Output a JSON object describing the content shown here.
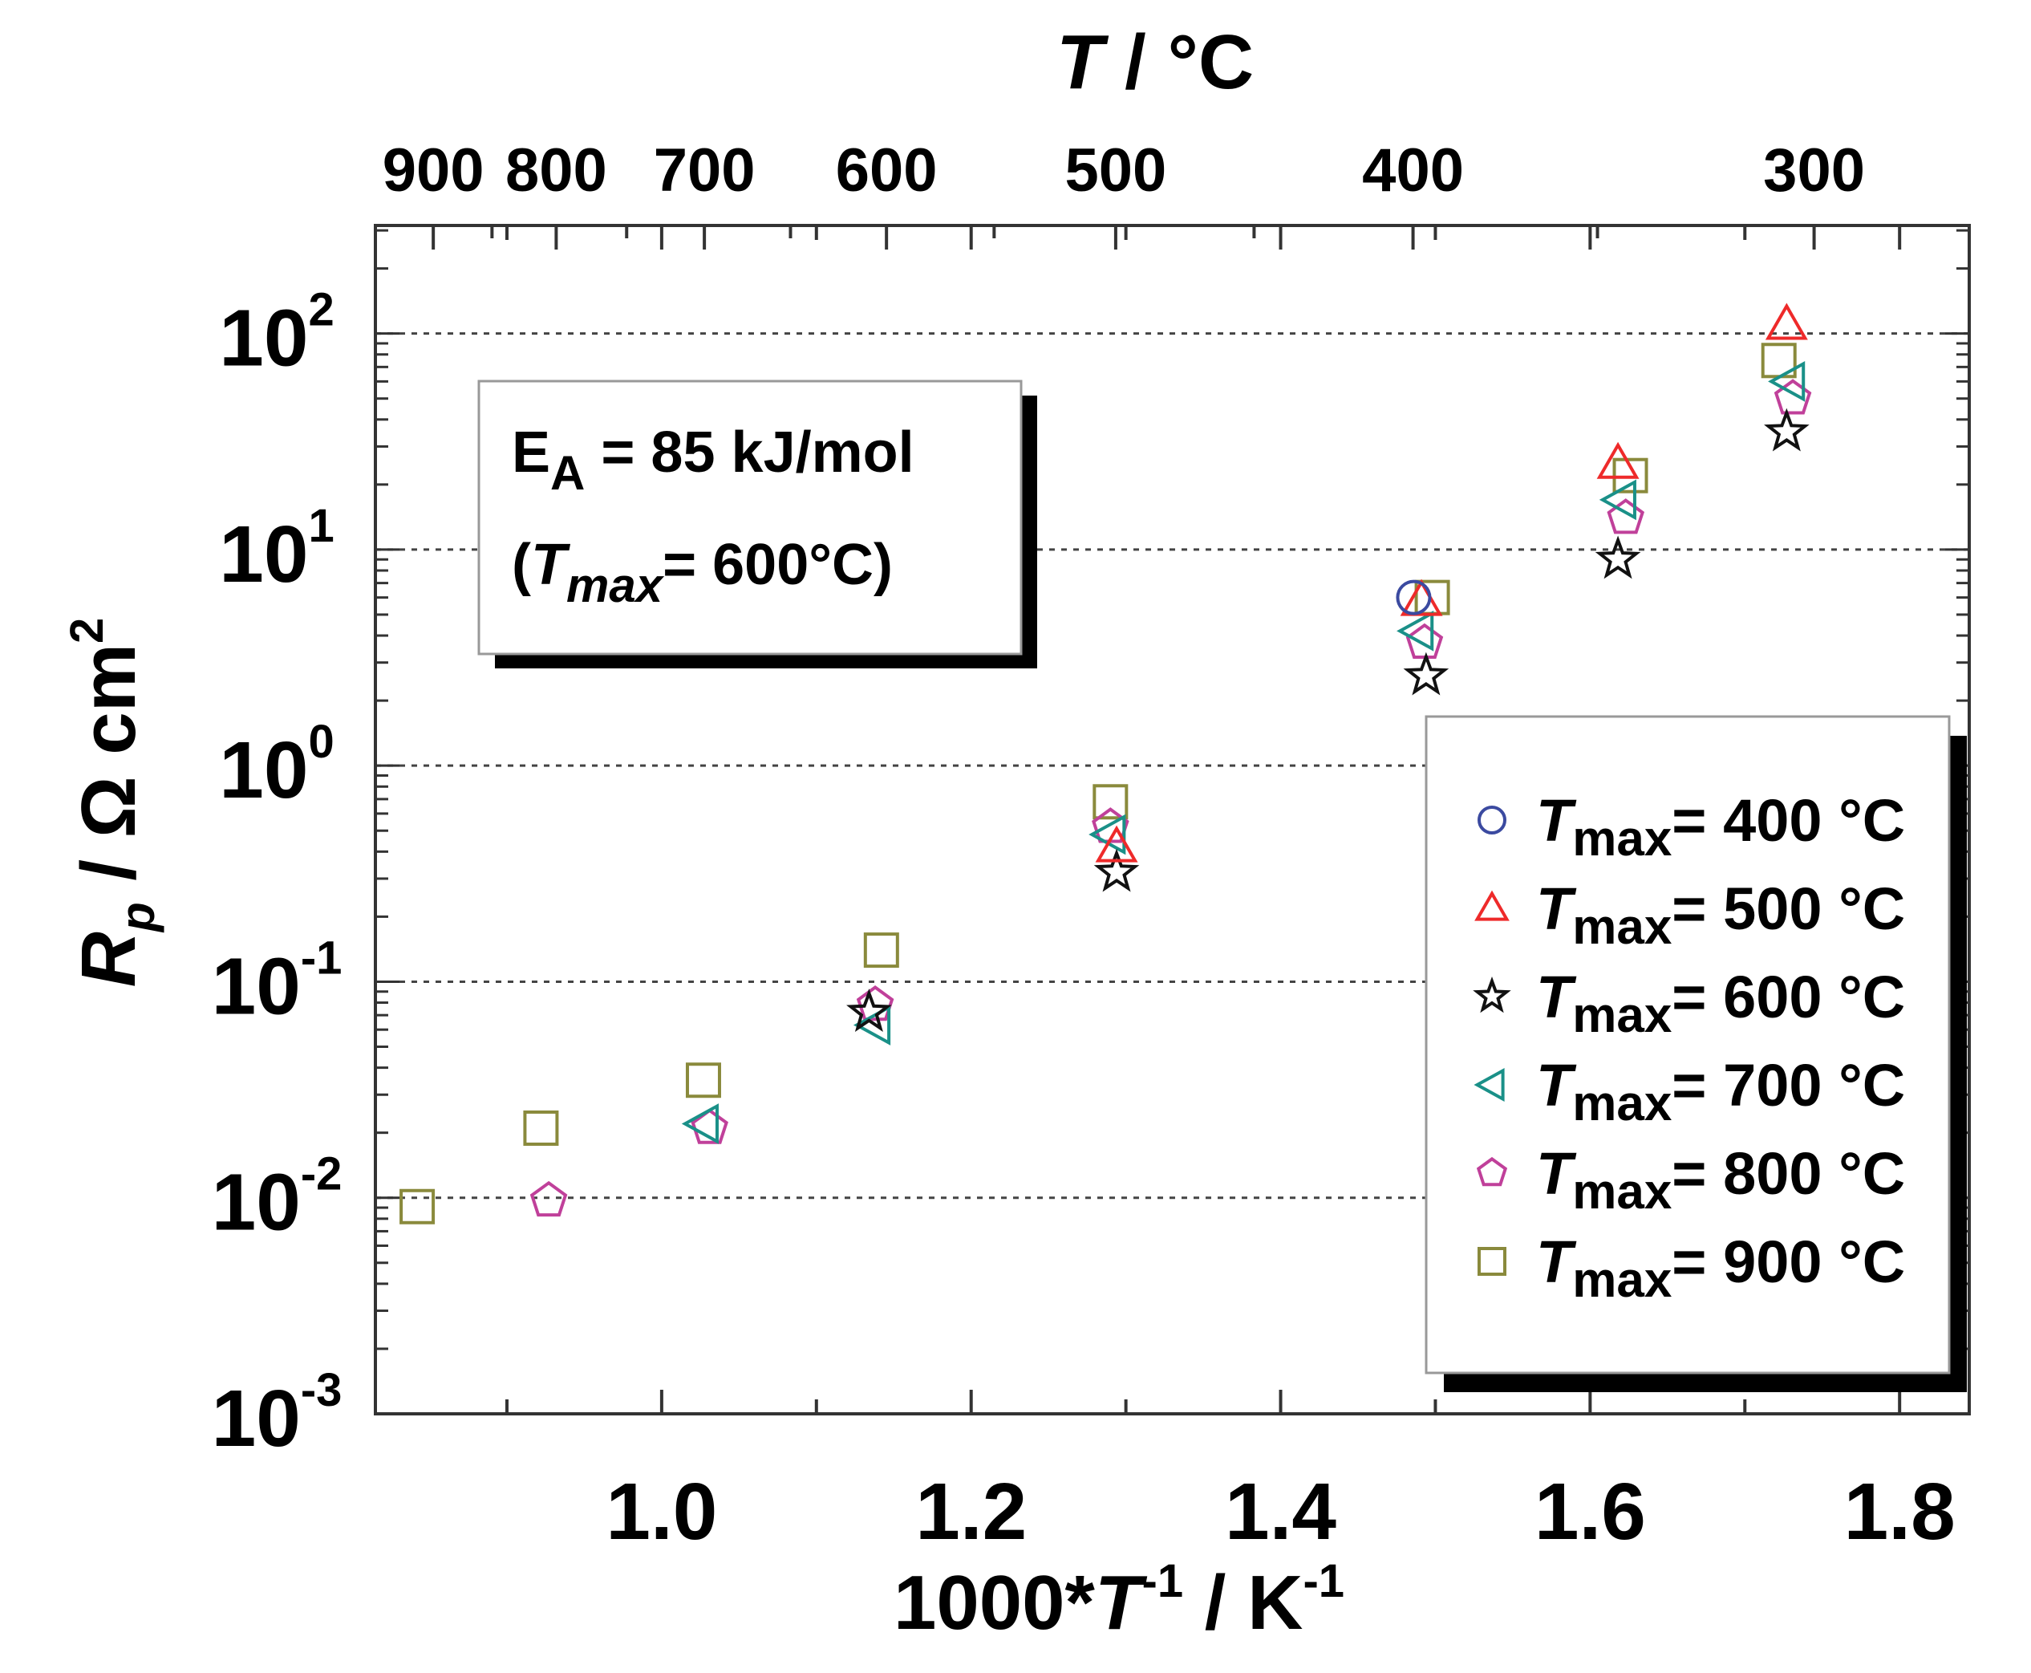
{
  "chart_data": {
    "type": "scatter",
    "title": "",
    "xlabel": "1000*T⁻¹ / K⁻¹",
    "xlabel_parts": {
      "prefix": "1000*",
      "var": "T",
      "exp1": "-1",
      "mid": " / K",
      "exp2": "-1"
    },
    "ylabel_parts": {
      "var": "R",
      "sub": "p",
      "unit": " / Ω cm",
      "sup": "2"
    },
    "top_axis_label_parts": {
      "var": "T",
      "unit": " / °C"
    },
    "x_range": [
      0.815,
      1.845
    ],
    "y_log_range": [
      -3,
      2.5
    ],
    "x_ticks": [
      1.0,
      1.2,
      1.4,
      1.6,
      1.8
    ],
    "x_tick_labels": [
      "1.0",
      "1.2",
      "1.4",
      "1.6",
      "1.8"
    ],
    "y_ticks": [
      {
        "value": 0.001,
        "base": "10",
        "exp": "-3"
      },
      {
        "value": 0.01,
        "base": "10",
        "exp": "-2"
      },
      {
        "value": 0.1,
        "base": "10",
        "exp": "-1"
      },
      {
        "value": 1,
        "base": "10",
        "exp": "0"
      },
      {
        "value": 10,
        "base": "10",
        "exp": "1"
      },
      {
        "value": 100,
        "base": "10",
        "exp": "2"
      }
    ],
    "gridlines_y": [
      0.01,
      0.1,
      1,
      10,
      100
    ],
    "top_ticks_celsius": [
      900,
      800,
      700,
      600,
      500,
      400,
      300
    ],
    "top_tick_labels": [
      "900",
      "800",
      "700",
      "600",
      "500",
      "400",
      "300"
    ],
    "annotation": {
      "line1_main": "E",
      "line1_sub": "A",
      "line1_rest": " = 85 kJ/mol",
      "line2_open": "(",
      "line2_var": "T",
      "line2_sub": "max",
      "line2_rest": "= 600°C)"
    },
    "legend_position": "bottom-right",
    "series": [
      {
        "name": "Tmax= 400 °C",
        "label_var": "T",
        "label_sub": "max",
        "label_rest": "= 400 °C",
        "marker": "circle",
        "color": "#3b4aa0",
        "points": [
          [
            1.486,
            6.0
          ]
        ]
      },
      {
        "name": "Tmax= 500 °C",
        "label_var": "T",
        "label_sub": "max",
        "label_rest": "= 500 °C",
        "marker": "triangle-up",
        "color": "#ee2a2a",
        "points": [
          [
            1.294,
            0.42
          ],
          [
            1.491,
            5.8
          ],
          [
            1.618,
            25
          ],
          [
            1.727,
            110
          ]
        ]
      },
      {
        "name": "Tmax= 600 °C",
        "label_var": "T",
        "label_sub": "max",
        "label_rest": "= 600 °C",
        "marker": "star",
        "color": "#111111",
        "points": [
          [
            1.134,
            0.072
          ],
          [
            1.294,
            0.32
          ],
          [
            1.494,
            2.6
          ],
          [
            1.618,
            9.0
          ],
          [
            1.727,
            35
          ]
        ]
      },
      {
        "name": "Tmax= 700 °C",
        "label_var": "T",
        "label_sub": "max",
        "label_rest": "= 700 °C",
        "marker": "triangle-left",
        "color": "#1a9088",
        "points": [
          [
            1.027,
            0.022
          ],
          [
            1.138,
            0.063
          ],
          [
            1.29,
            0.48
          ],
          [
            1.489,
            4.2
          ],
          [
            1.62,
            17
          ],
          [
            1.729,
            60
          ]
        ]
      },
      {
        "name": "Tmax= 800 °C",
        "label_var": "T",
        "label_sub": "max",
        "label_rest": "= 800 °C",
        "marker": "pentagon",
        "color": "#c0409a",
        "points": [
          [
            0.927,
            0.0097
          ],
          [
            1.031,
            0.021
          ],
          [
            1.138,
            0.078
          ],
          [
            1.29,
            0.52
          ],
          [
            1.493,
            3.7
          ],
          [
            1.623,
            14
          ],
          [
            1.731,
            50
          ]
        ]
      },
      {
        "name": "Tmax= 900 °C",
        "label_var": "T",
        "label_sub": "max",
        "label_rest": "= 900 °C",
        "marker": "square",
        "color": "#8a8a3c",
        "points": [
          [
            0.842,
            0.0091
          ],
          [
            0.922,
            0.021
          ],
          [
            1.027,
            0.035
          ],
          [
            1.142,
            0.14
          ],
          [
            1.29,
            0.68
          ],
          [
            1.498,
            6.0
          ],
          [
            1.626,
            22
          ],
          [
            1.722,
            75
          ]
        ]
      }
    ]
  }
}
